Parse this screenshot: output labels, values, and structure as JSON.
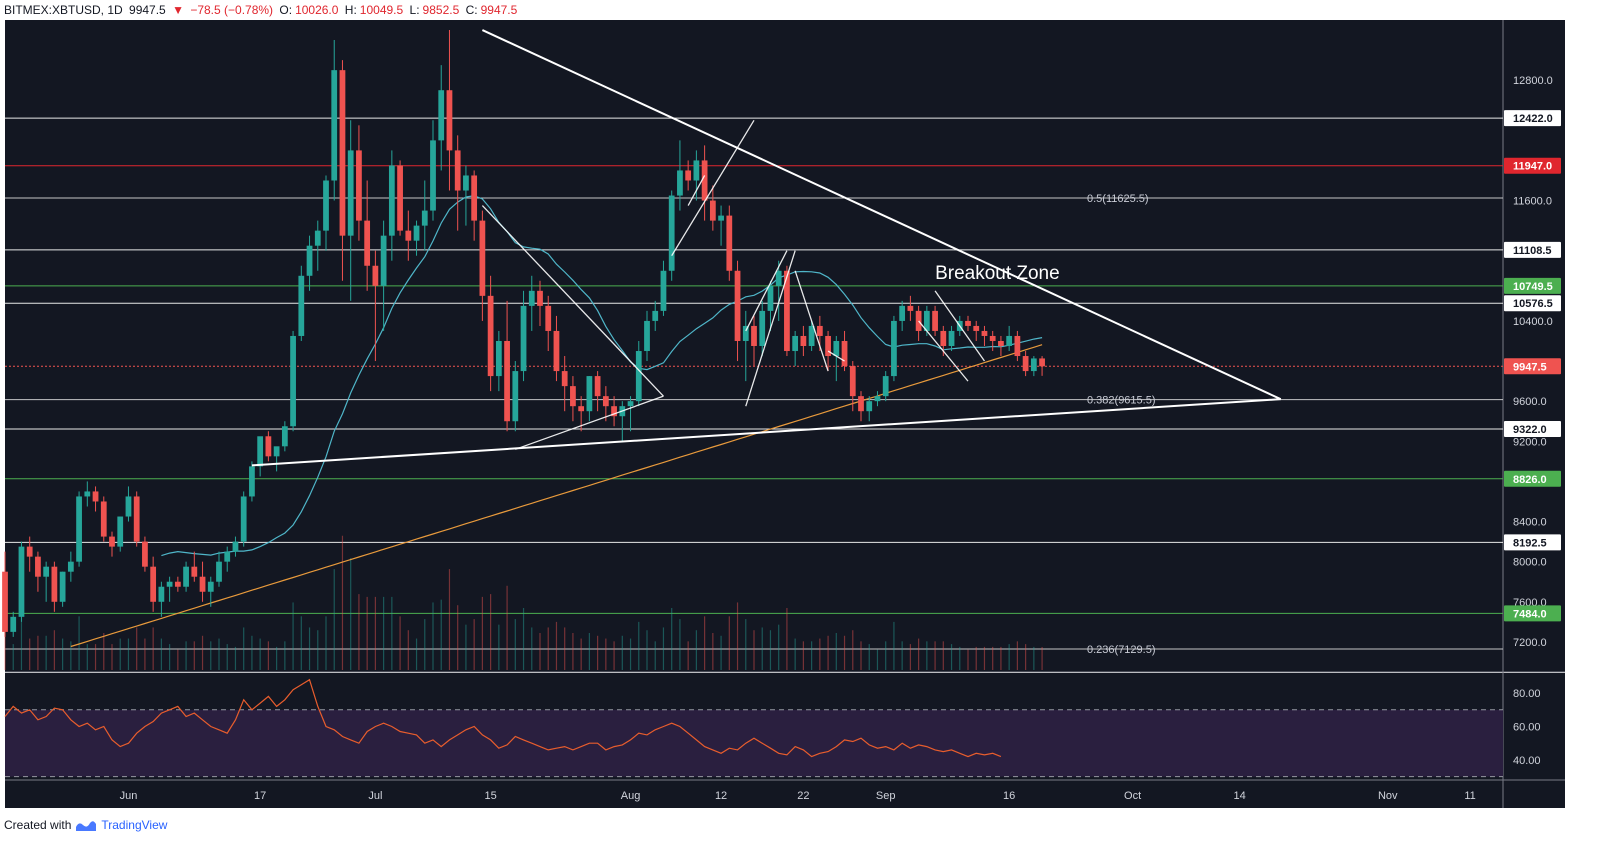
{
  "header": {
    "symbol": "BITMEX:XBTUSD, 1D",
    "last": "9947.5",
    "arrow": "▼",
    "change": "−78.5 (−0.78%)",
    "open_label": "O:",
    "open": "10026.0",
    "high_label": "H:",
    "high": "10049.5",
    "low_label": "L:",
    "low": "9852.5",
    "close_label": "C:",
    "close": "9947.5"
  },
  "footer": {
    "created_with": "Created with",
    "brand": "TradingView"
  },
  "colors": {
    "background": "#131722",
    "up": "#26a69a",
    "down": "#ef5350",
    "ma_short": "#4fb6c9",
    "ma_long": "#e89a3c",
    "rsi_line": "#e85d2d",
    "rsi_band": "#2a1f3f",
    "axis_text": "#d1d4dc"
  },
  "chart_data": [
    {
      "type": "candlestick",
      "title": "",
      "y_axis": {
        "ticks": [
          "12800.0",
          "11600.0",
          "10400.0",
          "9600.0",
          "9200.0",
          "8400.0",
          "8000.0",
          "7600.0",
          "7200.0"
        ],
        "tick_values": [
          12800,
          11600,
          10400,
          9600,
          9200,
          8400,
          8000,
          7600,
          7200
        ],
        "range": [
          6900,
          13400
        ]
      },
      "x_axis": {
        "ticks": [
          "Jun",
          "17",
          "Jul",
          "15",
          "Aug",
          "12",
          "22",
          "Sep",
          "16",
          "Oct",
          "14",
          "Nov",
          "11"
        ],
        "tick_dates": [
          "2019-06-01",
          "2019-06-17",
          "2019-07-01",
          "2019-07-15",
          "2019-08-01",
          "2019-08-12",
          "2019-08-22",
          "2019-09-01",
          "2019-09-16",
          "2019-10-01",
          "2019-10-14",
          "2019-11-01",
          "2019-11-11"
        ],
        "range": [
          "2019-05-17",
          "2019-11-15"
        ]
      },
      "candles": {
        "start_date": "2019-05-17",
        "ohlc": [
          [
            7900,
            8100,
            7250,
            7300
          ],
          [
            7300,
            7500,
            7250,
            7450
          ],
          [
            7450,
            8200,
            7400,
            8150
          ],
          [
            8150,
            8250,
            7900,
            8050
          ],
          [
            8050,
            8100,
            7700,
            7850
          ],
          [
            7850,
            8000,
            7600,
            7950
          ],
          [
            7950,
            8000,
            7500,
            7600
          ],
          [
            7600,
            7900,
            7550,
            7900
          ],
          [
            7900,
            8100,
            7800,
            8000
          ],
          [
            8000,
            8700,
            7950,
            8650
          ],
          [
            8650,
            8800,
            8550,
            8700
          ],
          [
            8700,
            8750,
            8500,
            8600
          ],
          [
            8600,
            8650,
            8200,
            8250
          ],
          [
            8250,
            8300,
            8050,
            8150
          ],
          [
            8150,
            8450,
            8100,
            8450
          ],
          [
            8450,
            8750,
            8400,
            8650
          ],
          [
            8650,
            8700,
            8150,
            8200
          ],
          [
            8200,
            8250,
            7900,
            7950
          ],
          [
            7950,
            8050,
            7500,
            7600
          ],
          [
            7600,
            7800,
            7450,
            7750
          ],
          [
            7750,
            7850,
            7600,
            7800
          ],
          [
            7800,
            7850,
            7700,
            7750
          ],
          [
            7750,
            8000,
            7700,
            7950
          ],
          [
            7950,
            8100,
            7800,
            7850
          ],
          [
            7850,
            8000,
            7600,
            7700
          ],
          [
            7700,
            7850,
            7550,
            7800
          ],
          [
            7800,
            8100,
            7750,
            8000
          ],
          [
            8000,
            8150,
            7900,
            8100
          ],
          [
            8100,
            8250,
            8050,
            8200
          ],
          [
            8200,
            8700,
            8150,
            8650
          ],
          [
            8650,
            9000,
            8600,
            8950
          ],
          [
            8950,
            9200,
            8850,
            9250
          ],
          [
            9250,
            9300,
            9000,
            9050
          ],
          [
            9050,
            9100,
            8900,
            9150
          ],
          [
            9150,
            9400,
            9100,
            9350
          ],
          [
            9350,
            10300,
            9300,
            10250
          ],
          [
            10250,
            10950,
            10200,
            10850
          ],
          [
            10850,
            11250,
            10700,
            11150
          ],
          [
            11150,
            11400,
            10900,
            11300
          ],
          [
            11300,
            11850,
            11100,
            11800
          ],
          [
            11800,
            13200,
            11600,
            12900
          ],
          [
            12900,
            13000,
            10800,
            11250
          ],
          [
            11250,
            12400,
            10600,
            12100
          ],
          [
            12100,
            12350,
            11200,
            11400
          ],
          [
            11400,
            11800,
            10700,
            10950
          ],
          [
            10950,
            11100,
            10000,
            10750
          ],
          [
            10750,
            11400,
            10300,
            11250
          ],
          [
            11250,
            12100,
            11000,
            11950
          ],
          [
            11950,
            12000,
            11250,
            11300
          ],
          [
            11300,
            11500,
            11000,
            11200
          ],
          [
            11200,
            11400,
            11050,
            11350
          ],
          [
            11350,
            11800,
            11100,
            11500
          ],
          [
            11500,
            12400,
            11400,
            12200
          ],
          [
            12200,
            12950,
            11900,
            12700
          ],
          [
            12700,
            13300,
            11700,
            12100
          ],
          [
            12100,
            12250,
            11300,
            11700
          ],
          [
            11700,
            11950,
            11350,
            11850
          ],
          [
            11850,
            11900,
            11200,
            11400
          ],
          [
            11400,
            11500,
            10400,
            10650
          ],
          [
            10650,
            10850,
            9700,
            9850
          ],
          [
            9850,
            10300,
            9700,
            10200
          ],
          [
            10200,
            10600,
            9300,
            9400
          ],
          [
            9400,
            10000,
            9300,
            9900
          ],
          [
            9900,
            10700,
            9800,
            10550
          ],
          [
            10550,
            10850,
            10300,
            10700
          ],
          [
            10700,
            10800,
            10350,
            10550
          ],
          [
            10550,
            10650,
            10100,
            10300
          ],
          [
            10300,
            10450,
            9800,
            9900
          ],
          [
            9900,
            10050,
            9500,
            9750
          ],
          [
            9750,
            9850,
            9400,
            9550
          ],
          [
            9550,
            9650,
            9300,
            9500
          ],
          [
            9500,
            9850,
            9400,
            9850
          ],
          [
            9850,
            9900,
            9500,
            9650
          ],
          [
            9650,
            9750,
            9400,
            9550
          ],
          [
            9550,
            9650,
            9350,
            9450
          ],
          [
            9450,
            9600,
            9200,
            9550
          ],
          [
            9550,
            9650,
            9300,
            9600
          ],
          [
            9600,
            10200,
            9550,
            10100
          ],
          [
            10100,
            10500,
            10000,
            10400
          ],
          [
            10400,
            10600,
            10300,
            10500
          ],
          [
            10500,
            11000,
            10450,
            10900
          ],
          [
            10900,
            11700,
            10800,
            11650
          ],
          [
            11650,
            12200,
            11500,
            11900
          ],
          [
            11900,
            12000,
            11700,
            11800
          ],
          [
            11800,
            12100,
            11600,
            12000
          ],
          [
            12000,
            12150,
            11400,
            11600
          ],
          [
            11600,
            11750,
            11300,
            11400
          ],
          [
            11400,
            11550,
            11150,
            11450
          ],
          [
            11450,
            11550,
            10800,
            10900
          ],
          [
            10900,
            11000,
            10000,
            10200
          ],
          [
            10200,
            10500,
            9800,
            10350
          ],
          [
            10350,
            10450,
            9950,
            10150
          ],
          [
            10150,
            10600,
            10050,
            10500
          ],
          [
            10500,
            10800,
            10300,
            10750
          ],
          [
            10750,
            11000,
            10400,
            10900
          ],
          [
            10900,
            10950,
            10050,
            10100
          ],
          [
            10100,
            10300,
            9950,
            10250
          ],
          [
            10250,
            10350,
            10050,
            10150
          ],
          [
            10150,
            10400,
            10100,
            10350
          ],
          [
            10350,
            10450,
            10100,
            10250
          ],
          [
            10250,
            10300,
            9900,
            10050
          ],
          [
            10050,
            10250,
            9800,
            10200
          ],
          [
            10200,
            10300,
            9900,
            9950
          ],
          [
            9950,
            10000,
            9500,
            9650
          ],
          [
            9650,
            9700,
            9400,
            9500
          ],
          [
            9500,
            9650,
            9400,
            9600
          ],
          [
            9600,
            9700,
            9550,
            9650
          ],
          [
            9650,
            9900,
            9600,
            9850
          ],
          [
            9850,
            10450,
            9800,
            10400
          ],
          [
            10400,
            10600,
            10300,
            10550
          ],
          [
            10550,
            10650,
            10400,
            10500
          ],
          [
            10500,
            10550,
            10200,
            10300
          ],
          [
            10300,
            10550,
            10250,
            10500
          ],
          [
            10500,
            10550,
            10250,
            10300
          ],
          [
            10300,
            10350,
            10050,
            10150
          ],
          [
            10150,
            10350,
            10100,
            10300
          ],
          [
            10300,
            10450,
            10250,
            10400
          ],
          [
            10400,
            10450,
            10300,
            10350
          ],
          [
            10350,
            10400,
            10200,
            10300
          ],
          [
            10300,
            10350,
            10150,
            10250
          ],
          [
            10250,
            10300,
            10100,
            10200
          ],
          [
            10200,
            10250,
            10050,
            10150
          ],
          [
            10150,
            10350,
            10100,
            10250
          ],
          [
            10250,
            10300,
            10000,
            10050
          ],
          [
            10050,
            10100,
            9850,
            9900
          ],
          [
            9900,
            10050,
            9850,
            10026
          ],
          [
            10026,
            10049.5,
            9852.5,
            9947.5
          ]
        ]
      },
      "price_labels": [
        {
          "value": 12422.0,
          "label": "12422.0",
          "color": "#ffffff",
          "text_color": "#131722"
        },
        {
          "value": 11947.0,
          "label": "11947.0",
          "color": "#e0262e",
          "text_color": "#ffffff"
        },
        {
          "value": 11108.5,
          "label": "11108.5",
          "color": "#ffffff",
          "text_color": "#131722"
        },
        {
          "value": 10749.5,
          "label": "10749.5",
          "color": "#4caf50",
          "text_color": "#ffffff"
        },
        {
          "value": 10576.5,
          "label": "10576.5",
          "color": "#ffffff",
          "text_color": "#131722"
        },
        {
          "value": 9947.5,
          "label": "9947.5",
          "color": "#ef5350",
          "text_color": "#ffffff"
        },
        {
          "value": 9322.0,
          "label": "9322.0",
          "color": "#ffffff",
          "text_color": "#131722"
        },
        {
          "value": 8826.0,
          "label": "8826.0",
          "color": "#4caf50",
          "text_color": "#ffffff"
        },
        {
          "value": 8192.5,
          "label": "8192.5",
          "color": "#ffffff",
          "text_color": "#131722"
        },
        {
          "value": 7484.0,
          "label": "7484.0",
          "color": "#4caf50",
          "text_color": "#ffffff"
        }
      ],
      "fib_levels": [
        {
          "value": 11625.5,
          "label": "0.5(11625.5)"
        },
        {
          "value": 9615.5,
          "label": "0.382(9615.5)"
        },
        {
          "value": 7129.5,
          "label": "0.236(7129.5)"
        }
      ],
      "annotations": [
        {
          "text": "Breakout Zone",
          "date": "2019-09-07",
          "value": 10820
        }
      ],
      "trendlines": [
        {
          "from": [
            "2019-07-14",
            13300
          ],
          "to": [
            "2019-10-19",
            9620
          ]
        },
        {
          "from": [
            "2019-06-16",
            8960
          ],
          "to": [
            "2019-10-19",
            9620
          ]
        }
      ]
    },
    {
      "type": "line",
      "title": "",
      "series": [
        {
          "values": [
            66,
            72,
            68,
            70,
            64,
            66,
            71,
            70,
            64,
            60,
            62,
            58,
            60,
            52,
            48,
            50,
            56,
            60,
            63,
            68,
            70,
            72,
            66,
            68,
            64,
            60,
            58,
            56,
            64,
            76,
            70,
            74,
            78,
            72,
            76,
            82,
            85,
            88,
            72,
            60,
            58,
            54,
            52,
            50,
            57,
            60,
            62,
            60,
            57,
            56,
            55,
            50,
            52,
            48,
            52,
            55,
            58,
            60,
            55,
            52,
            47,
            49,
            54,
            52,
            50,
            48,
            46,
            47,
            48,
            46,
            48,
            50,
            50,
            46,
            48,
            49,
            52,
            56,
            55,
            58,
            60,
            62,
            60,
            56,
            52,
            48,
            46,
            44,
            47,
            46,
            50,
            53,
            50,
            47,
            44,
            43,
            48,
            46,
            42,
            44,
            45,
            48,
            52,
            51,
            53,
            49,
            47,
            48,
            46,
            50,
            47,
            49,
            48,
            46,
            45,
            46,
            44,
            42,
            44,
            43,
            44,
            42
          ]
        }
      ],
      "y_axis": {
        "ticks": [
          "80.00",
          "60.00",
          "40.00"
        ],
        "tick_values": [
          80,
          60,
          40
        ],
        "range": [
          28,
          92
        ]
      },
      "bands": {
        "upper": 70,
        "lower": 30
      }
    }
  ]
}
